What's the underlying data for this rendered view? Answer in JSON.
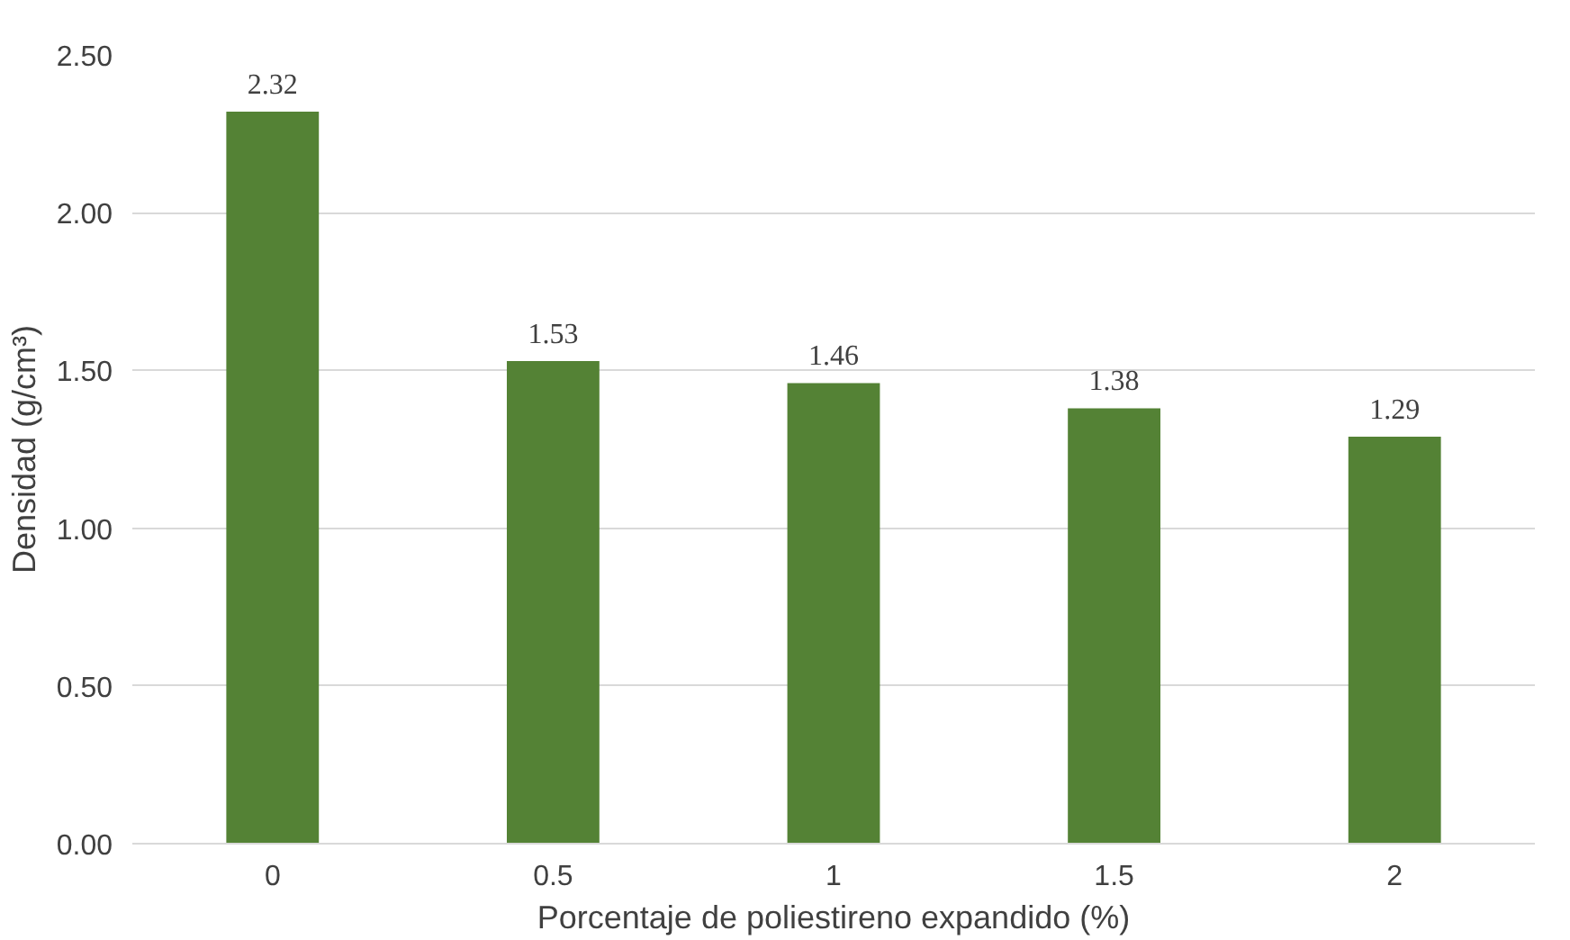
{
  "chart_data": {
    "type": "bar",
    "xlabel": "Porcentaje de poliestireno expandido (%)",
    "ylabel": "Densidad (g/cm³)",
    "categories": [
      "0",
      "0.5",
      "1",
      "1.5",
      "2"
    ],
    "values": [
      2.32,
      1.53,
      1.46,
      1.38,
      1.29
    ],
    "color": "#548235",
    "ylim": [
      0,
      2.5
    ],
    "yticks": [
      {
        "value": 0,
        "label": "0.00"
      },
      {
        "value": 0.5,
        "label": "0.50"
      },
      {
        "value": 1,
        "label": "1.00"
      },
      {
        "value": 1.5,
        "label": "1.50"
      },
      {
        "value": 2,
        "label": "2.00"
      },
      {
        "value": 2.5,
        "label": "2.50"
      }
    ],
    "grid": "y",
    "data_labels": true
  }
}
